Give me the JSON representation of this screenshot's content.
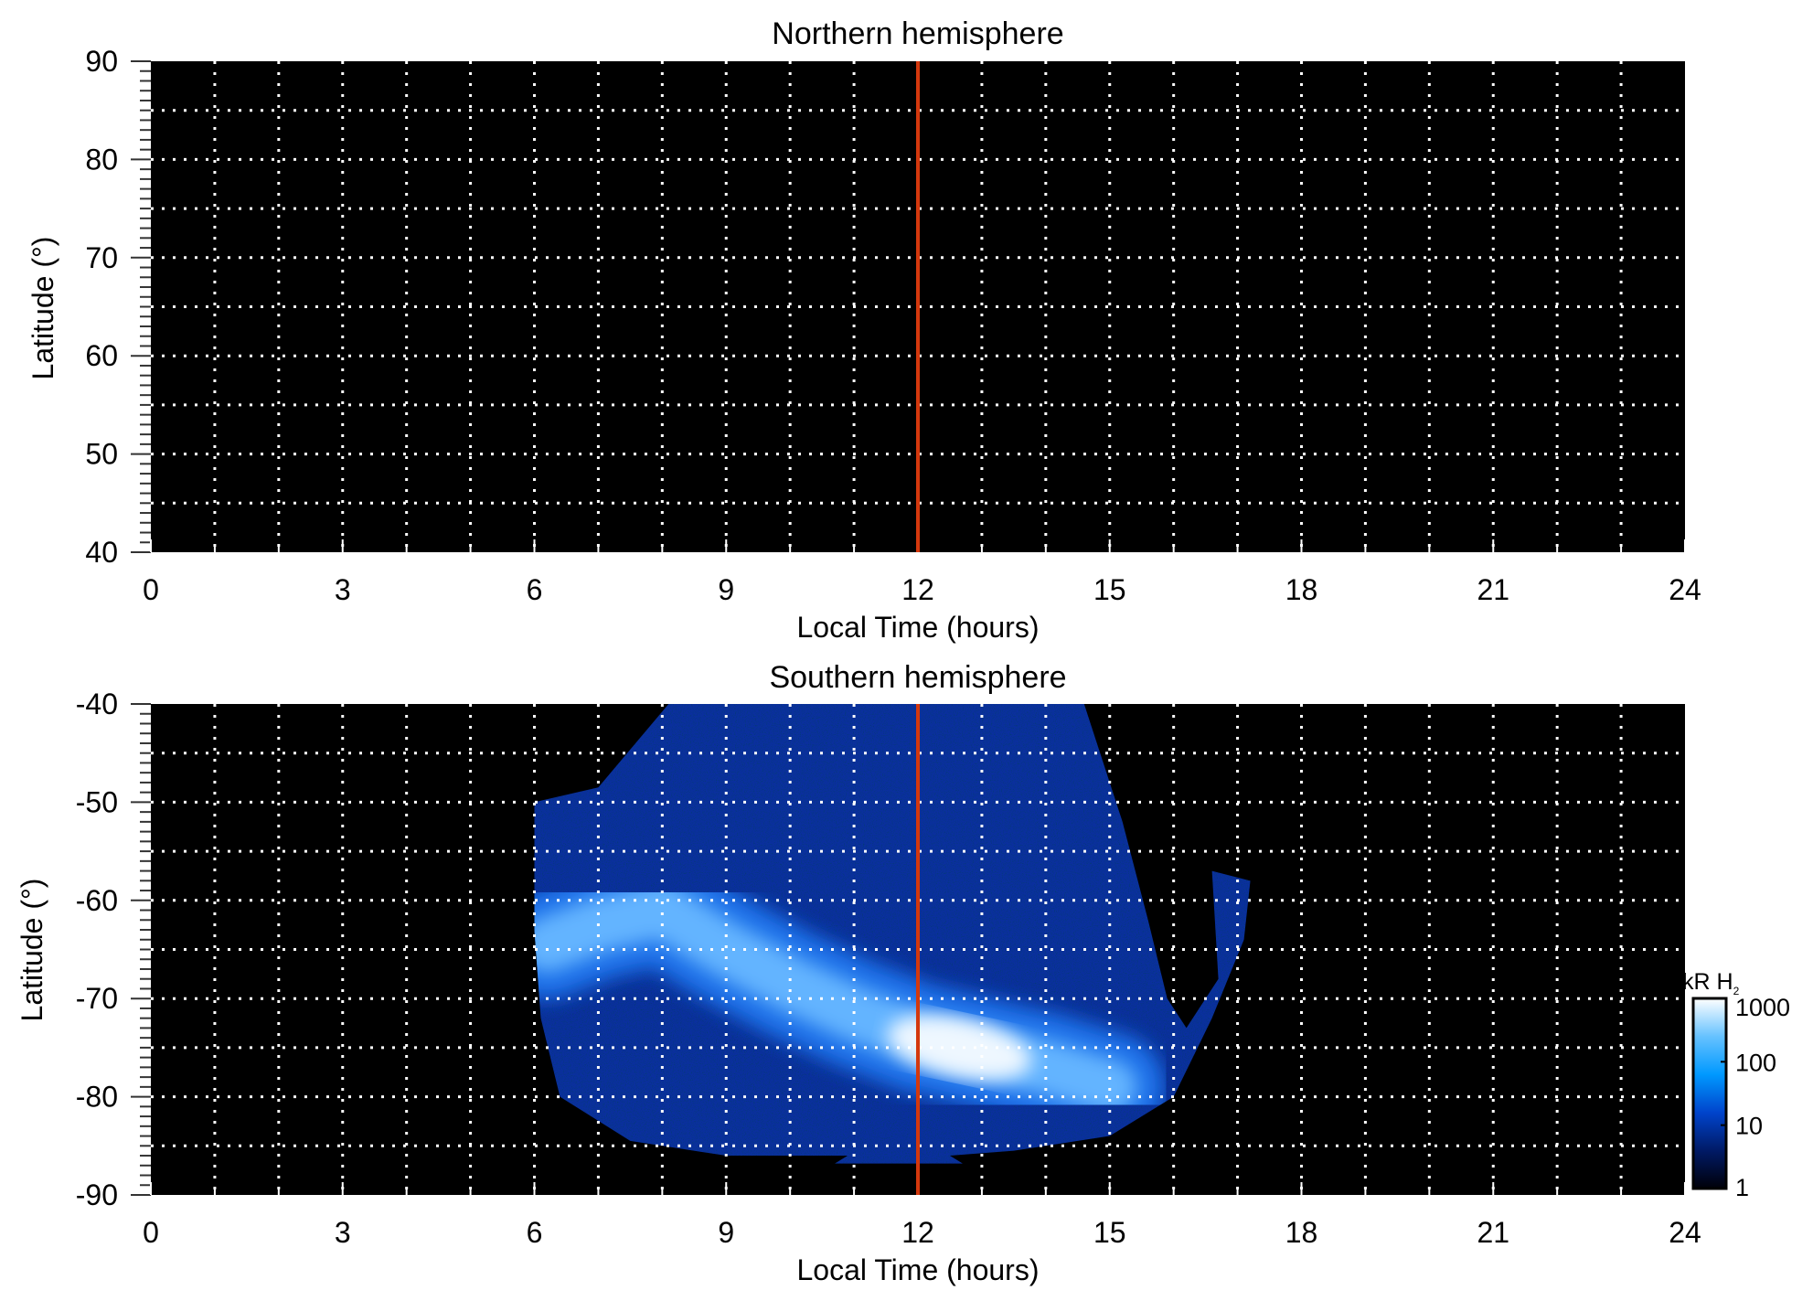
{
  "chart_data": [
    {
      "type": "heatmap",
      "title": "Northern hemisphere",
      "xlabel": "Local Time (hours)",
      "ylabel": "Latitude (°)",
      "xlim": [
        0,
        24
      ],
      "ylim": [
        40,
        90
      ],
      "xticks": [
        "0",
        "3",
        "6",
        "9",
        "12",
        "15",
        "18",
        "21",
        "24"
      ],
      "yticks": [
        "90",
        "80",
        "70",
        "60",
        "50",
        "40"
      ],
      "grid": true,
      "grid_x_step_hours": 1,
      "grid_y_step_deg": 5,
      "reference_line": {
        "x": 12,
        "color": "#d4380d"
      },
      "emission": "none"
    },
    {
      "type": "heatmap",
      "title": "Southern hemisphere",
      "xlabel": "Local Time (hours)",
      "ylabel": "Latitude (°)",
      "xlim": [
        0,
        24
      ],
      "ylim": [
        -90,
        -40
      ],
      "xticks": [
        "0",
        "3",
        "6",
        "9",
        "12",
        "15",
        "18",
        "21",
        "24"
      ],
      "yticks": [
        "-40",
        "-50",
        "-60",
        "-70",
        "-80",
        "-90"
      ],
      "grid": true,
      "grid_x_step_hours": 1,
      "grid_y_step_deg": 5,
      "reference_line": {
        "x": 12,
        "color": "#d4380d"
      },
      "coverage_outline": [
        [
          6,
          -50
        ],
        [
          7,
          -48.5
        ],
        [
          8.1,
          -40
        ],
        [
          14.6,
          -40
        ],
        [
          15.2,
          -52
        ],
        [
          15.6,
          -62
        ],
        [
          15.9,
          -70
        ],
        [
          16.2,
          -73
        ],
        [
          16.7,
          -68
        ],
        [
          16.6,
          -57
        ],
        [
          17.2,
          -58
        ],
        [
          17.1,
          -64
        ],
        [
          16.6,
          -72
        ],
        [
          16,
          -80
        ],
        [
          15,
          -84
        ],
        [
          13.5,
          -85.5
        ],
        [
          12.5,
          -86
        ],
        [
          12.7,
          -86.8
        ],
        [
          10.7,
          -86.8
        ],
        [
          10.9,
          -86
        ],
        [
          9,
          -86
        ],
        [
          7.5,
          -84.5
        ],
        [
          6.4,
          -80
        ],
        [
          6.1,
          -72
        ],
        [
          6,
          -63
        ]
      ],
      "auroral_oval": [
        [
          6.2,
          -64.5
        ],
        [
          7,
          -62.5
        ],
        [
          8,
          -61
        ],
        [
          9,
          -65
        ],
        [
          10,
          -68.5
        ],
        [
          11,
          -71.5
        ],
        [
          12,
          -74
        ],
        [
          13,
          -75.5
        ],
        [
          14,
          -77
        ],
        [
          15,
          -79
        ]
      ],
      "peak_region": {
        "local_time": [
          11.5,
          13.8
        ],
        "latitude": [
          -72,
          -78
        ],
        "value_kR": 1000
      },
      "background_value_kR": 5
    }
  ],
  "colorbar": {
    "label": "kR H",
    "label_subscript": "2",
    "scale": "log",
    "ticks": [
      "1000",
      "100",
      "10",
      "1"
    ],
    "range": [
      1,
      1000
    ],
    "colors": [
      "#000008",
      "#001a66",
      "#0044cc",
      "#0099ff",
      "#66c2ff",
      "#ffffff"
    ]
  }
}
